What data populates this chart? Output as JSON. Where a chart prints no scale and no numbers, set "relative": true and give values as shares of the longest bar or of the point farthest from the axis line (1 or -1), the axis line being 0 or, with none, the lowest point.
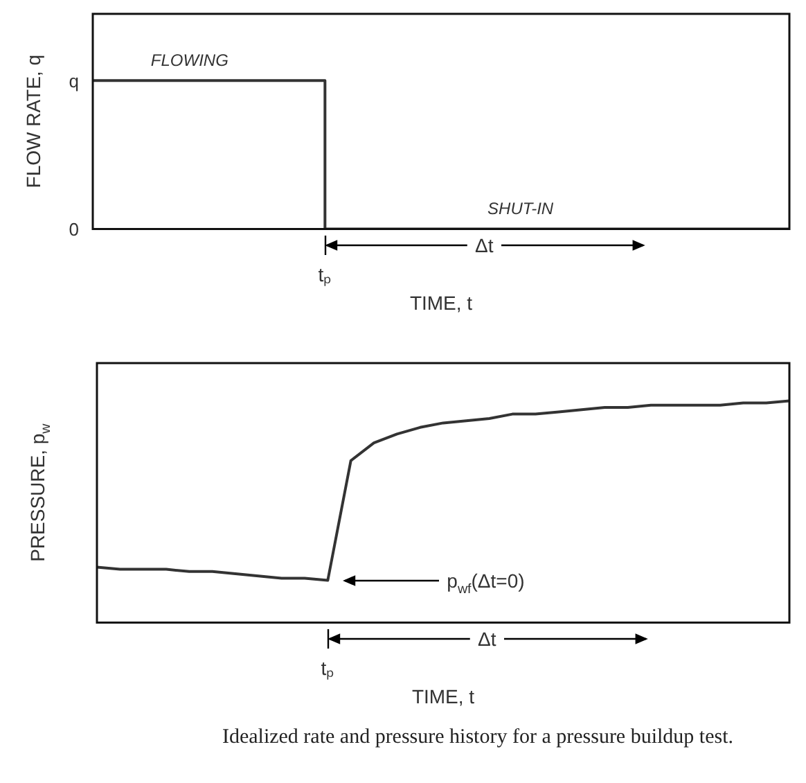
{
  "chart_data": [
    {
      "type": "step",
      "relative": true,
      "xlabel": "TIME, t",
      "ylabel": "FLOW RATE, q",
      "categories": [
        null,
        null,
        null,
        null,
        null,
        null,
        null
      ],
      "values": [
        1,
        1,
        0,
        0,
        0,
        0,
        0
      ],
      "color": "#333333",
      "marker": "none",
      "line_style": "solid",
      "annotations": [
        "FLOWING",
        "SHUT-IN",
        "Δt",
        "tₚ",
        "q",
        "0"
      ]
    },
    {
      "type": "line",
      "relative": true,
      "xlabel": "TIME, t",
      "ylabel": "PRESSURE, p$_{w}$",
      "categories": [
        null,
        null,
        null,
        null,
        null,
        null,
        null,
        null,
        null,
        null,
        null,
        null,
        null,
        null,
        null,
        null,
        null,
        null,
        null,
        null,
        null,
        null,
        null,
        null,
        null,
        null,
        null,
        null,
        null,
        null,
        null
      ],
      "values": [
        0.25,
        0.24,
        0.24,
        0.24,
        0.23,
        0.23,
        0.22,
        0.21,
        0.2,
        0.2,
        0.19,
        0.73,
        0.81,
        0.85,
        0.88,
        0.9,
        0.91,
        0.92,
        0.94,
        0.94,
        0.95,
        0.96,
        0.97,
        0.97,
        0.98,
        0.98,
        0.98,
        0.98,
        0.99,
        0.99,
        1
      ],
      "color": "#333333",
      "marker": "none",
      "line_style": "solid",
      "annotations": [
        "p$_{wf}$(Δt=0)",
        "Δt",
        "tₚ",
        "Idealized rate and pressure history for a pressure buildup test."
      ]
    }
  ]
}
